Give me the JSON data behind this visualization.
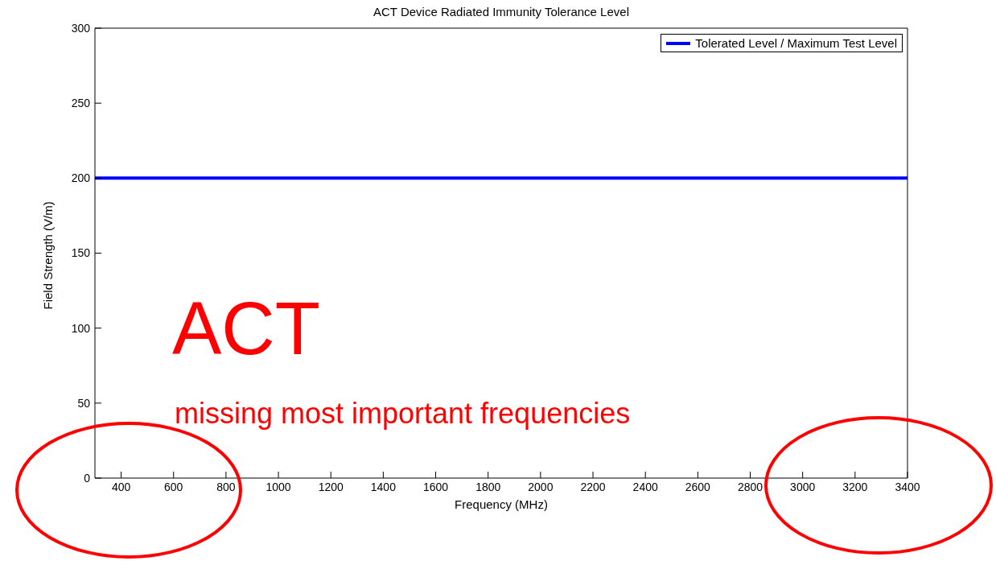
{
  "chart_data": {
    "type": "line",
    "title": "ACT Device Radiated Immunity Tolerance Level",
    "xlabel": "Frequency (MHz)",
    "ylabel": "Field Strength (V/m)",
    "series": [
      {
        "name": "Tolerated Level / Maximum Test Level",
        "color": "#0000ff",
        "x": [
          300,
          3400
        ],
        "values": [
          200,
          200
        ]
      }
    ],
    "xlim": [
      300,
      3400
    ],
    "xticks": [
      400,
      600,
      800,
      1000,
      1200,
      1400,
      1600,
      1800,
      2000,
      2200,
      2400,
      2600,
      2800,
      3000,
      3200,
      3400
    ],
    "ylim": [
      0,
      300
    ],
    "yticks": [
      0,
      50,
      100,
      150,
      200,
      250,
      300
    ],
    "legend": "top right",
    "marker": "none",
    "line_style": "solid",
    "annotations": [
      "ACT",
      "missing most important frequencies"
    ]
  }
}
